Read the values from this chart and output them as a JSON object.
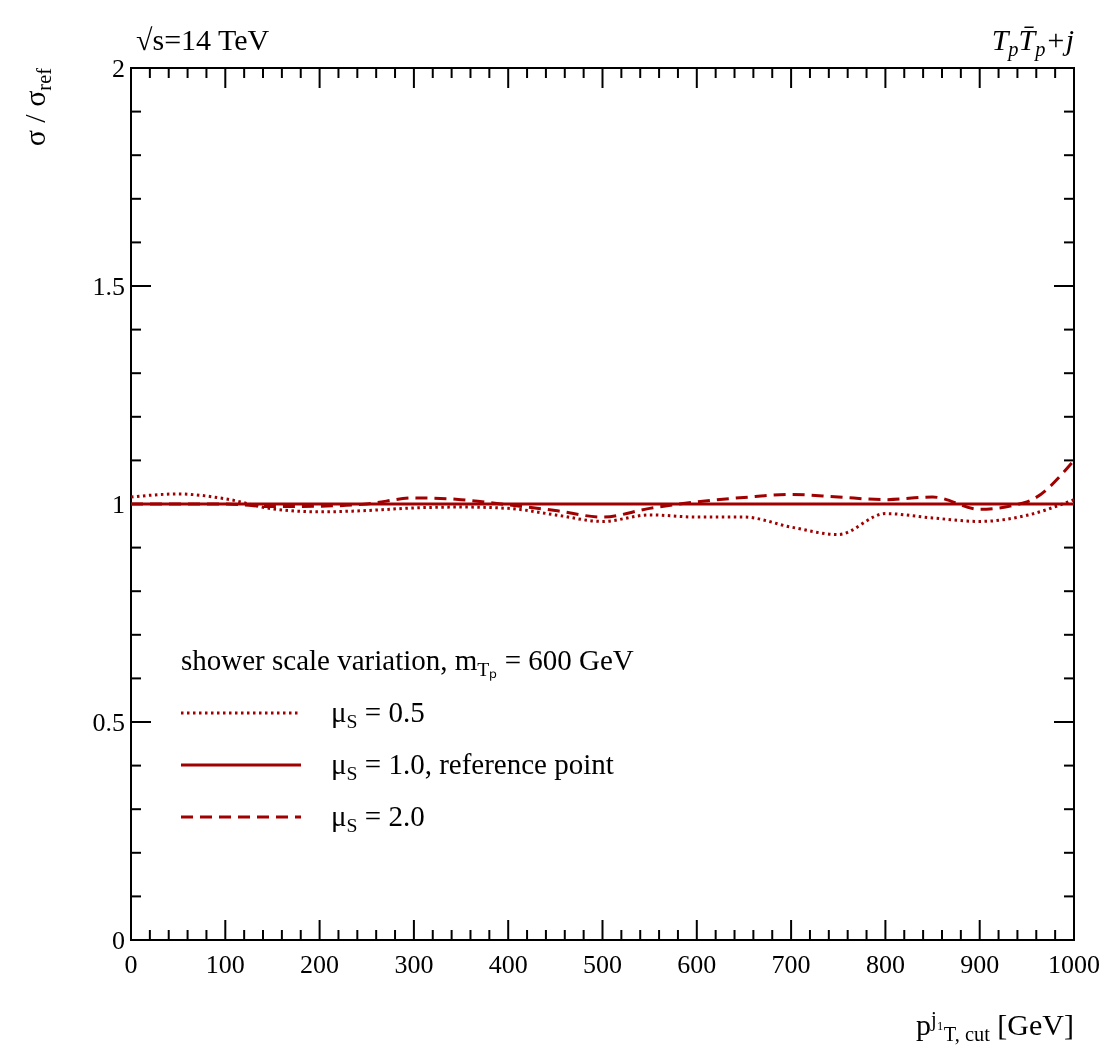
{
  "chart_data": {
    "type": "line",
    "title": "T$_{p}$T̄$_{p}$+j",
    "subtitle": "√s=14 TeV",
    "xlabel": "p$^{j₁}$$_{T, cut}$ [GeV]",
    "ylabel": "σ / σ$_{ref}$",
    "legend_title": "shower scale variation, m$_{Tₚ}$ = 600 GeV",
    "legend": "bottom left",
    "grid": false,
    "x": [
      0,
      50,
      100,
      150,
      200,
      250,
      300,
      350,
      400,
      450,
      500,
      550,
      600,
      650,
      700,
      750,
      800,
      850,
      900,
      950,
      1000
    ],
    "series": [
      {
        "name": "μ$_{S}$ = 0.5",
        "color": "#a00000",
        "line_style": "dotted",
        "values": [
          1.016,
          1.023,
          1.012,
          0.989,
          0.982,
          0.985,
          0.991,
          0.993,
          0.99,
          0.975,
          0.96,
          0.975,
          0.97,
          0.97,
          0.947,
          0.93,
          0.978,
          0.968,
          0.96,
          0.974,
          1.01
        ]
      },
      {
        "name": "μ$_{S}$ = 1.0, reference point",
        "color": "#a00000",
        "line_style": "solid",
        "values": [
          1,
          1,
          1,
          1,
          1,
          1,
          1,
          1,
          1,
          1,
          1,
          1,
          1,
          1,
          1,
          1,
          1,
          1,
          1,
          1,
          1
        ]
      },
      {
        "name": "μ$_{S}$ = 2.0",
        "color": "#a00000",
        "line_style": "dashed",
        "values": [
          1.0,
          1.0,
          1.0,
          0.994,
          0.995,
          1.0,
          1.014,
          1.01,
          0.998,
          0.985,
          0.97,
          0.99,
          1.005,
          1.015,
          1.022,
          1.016,
          1.01,
          1.016,
          0.988,
          1.005,
          1.1
        ]
      }
    ],
    "xlim": [
      0,
      1000
    ],
    "ylim": [
      0,
      2
    ],
    "xticks": [
      0,
      {
        "value": 20,
        "label": null
      },
      {
        "value": 40,
        "label": null
      },
      {
        "value": 60,
        "label": null
      },
      {
        "value": 80,
        "label": null
      },
      100,
      {
        "value": 120,
        "label": null
      },
      {
        "value": 140,
        "label": null
      },
      {
        "value": 160,
        "label": null
      },
      {
        "value": 180,
        "label": null
      },
      200,
      {
        "value": 220,
        "label": null
      },
      {
        "value": 240,
        "label": null
      },
      {
        "value": 260,
        "label": null
      },
      {
        "value": 280,
        "label": null
      },
      300,
      {
        "value": 320,
        "label": null
      },
      {
        "value": 340,
        "label": null
      },
      {
        "value": 360,
        "label": null
      },
      {
        "value": 380,
        "label": null
      },
      400,
      {
        "value": 420,
        "label": null
      },
      {
        "value": 440,
        "label": null
      },
      {
        "value": 460,
        "label": null
      },
      {
        "value": 480,
        "label": null
      },
      500,
      {
        "value": 520,
        "label": null
      },
      {
        "value": 540,
        "label": null
      },
      {
        "value": 560,
        "label": null
      },
      {
        "value": 580,
        "label": null
      },
      600,
      {
        "value": 620,
        "label": null
      },
      {
        "value": 640,
        "label": null
      },
      {
        "value": 660,
        "label": null
      },
      {
        "value": 680,
        "label": null
      },
      700,
      {
        "value": 720,
        "label": null
      },
      {
        "value": 740,
        "label": null
      },
      {
        "value": 760,
        "label": null
      },
      {
        "value": 780,
        "label": null
      },
      800,
      {
        "value": 820,
        "label": null
      },
      {
        "value": 840,
        "label": null
      },
      {
        "value": 860,
        "label": null
      },
      {
        "value": 880,
        "label": null
      },
      900,
      {
        "value": 920,
        "label": null
      },
      {
        "value": 940,
        "label": null
      },
      {
        "value": 960,
        "label": null
      },
      {
        "value": 980,
        "label": null
      },
      1000
    ],
    "yticks": [
      0,
      {
        "value": 0.1,
        "label": null
      },
      {
        "value": 0.2,
        "label": null
      },
      {
        "value": 0.3,
        "label": null
      },
      {
        "value": 0.4,
        "label": null
      },
      0.5,
      {
        "value": 0.6,
        "label": null
      },
      {
        "value": 0.7,
        "label": null
      },
      {
        "value": 0.8,
        "label": null
      },
      {
        "value": 0.9,
        "label": null
      },
      1,
      {
        "value": 1.1,
        "label": null
      },
      {
        "value": 1.2,
        "label": null
      },
      {
        "value": 1.3,
        "label": null
      },
      {
        "value": 1.4,
        "label": null
      },
      1.5,
      {
        "value": 1.6,
        "label": null
      },
      {
        "value": 1.7,
        "label": null
      },
      {
        "value": 1.8,
        "label": null
      },
      {
        "value": 1.9,
        "label": null
      },
      2
    ]
  }
}
